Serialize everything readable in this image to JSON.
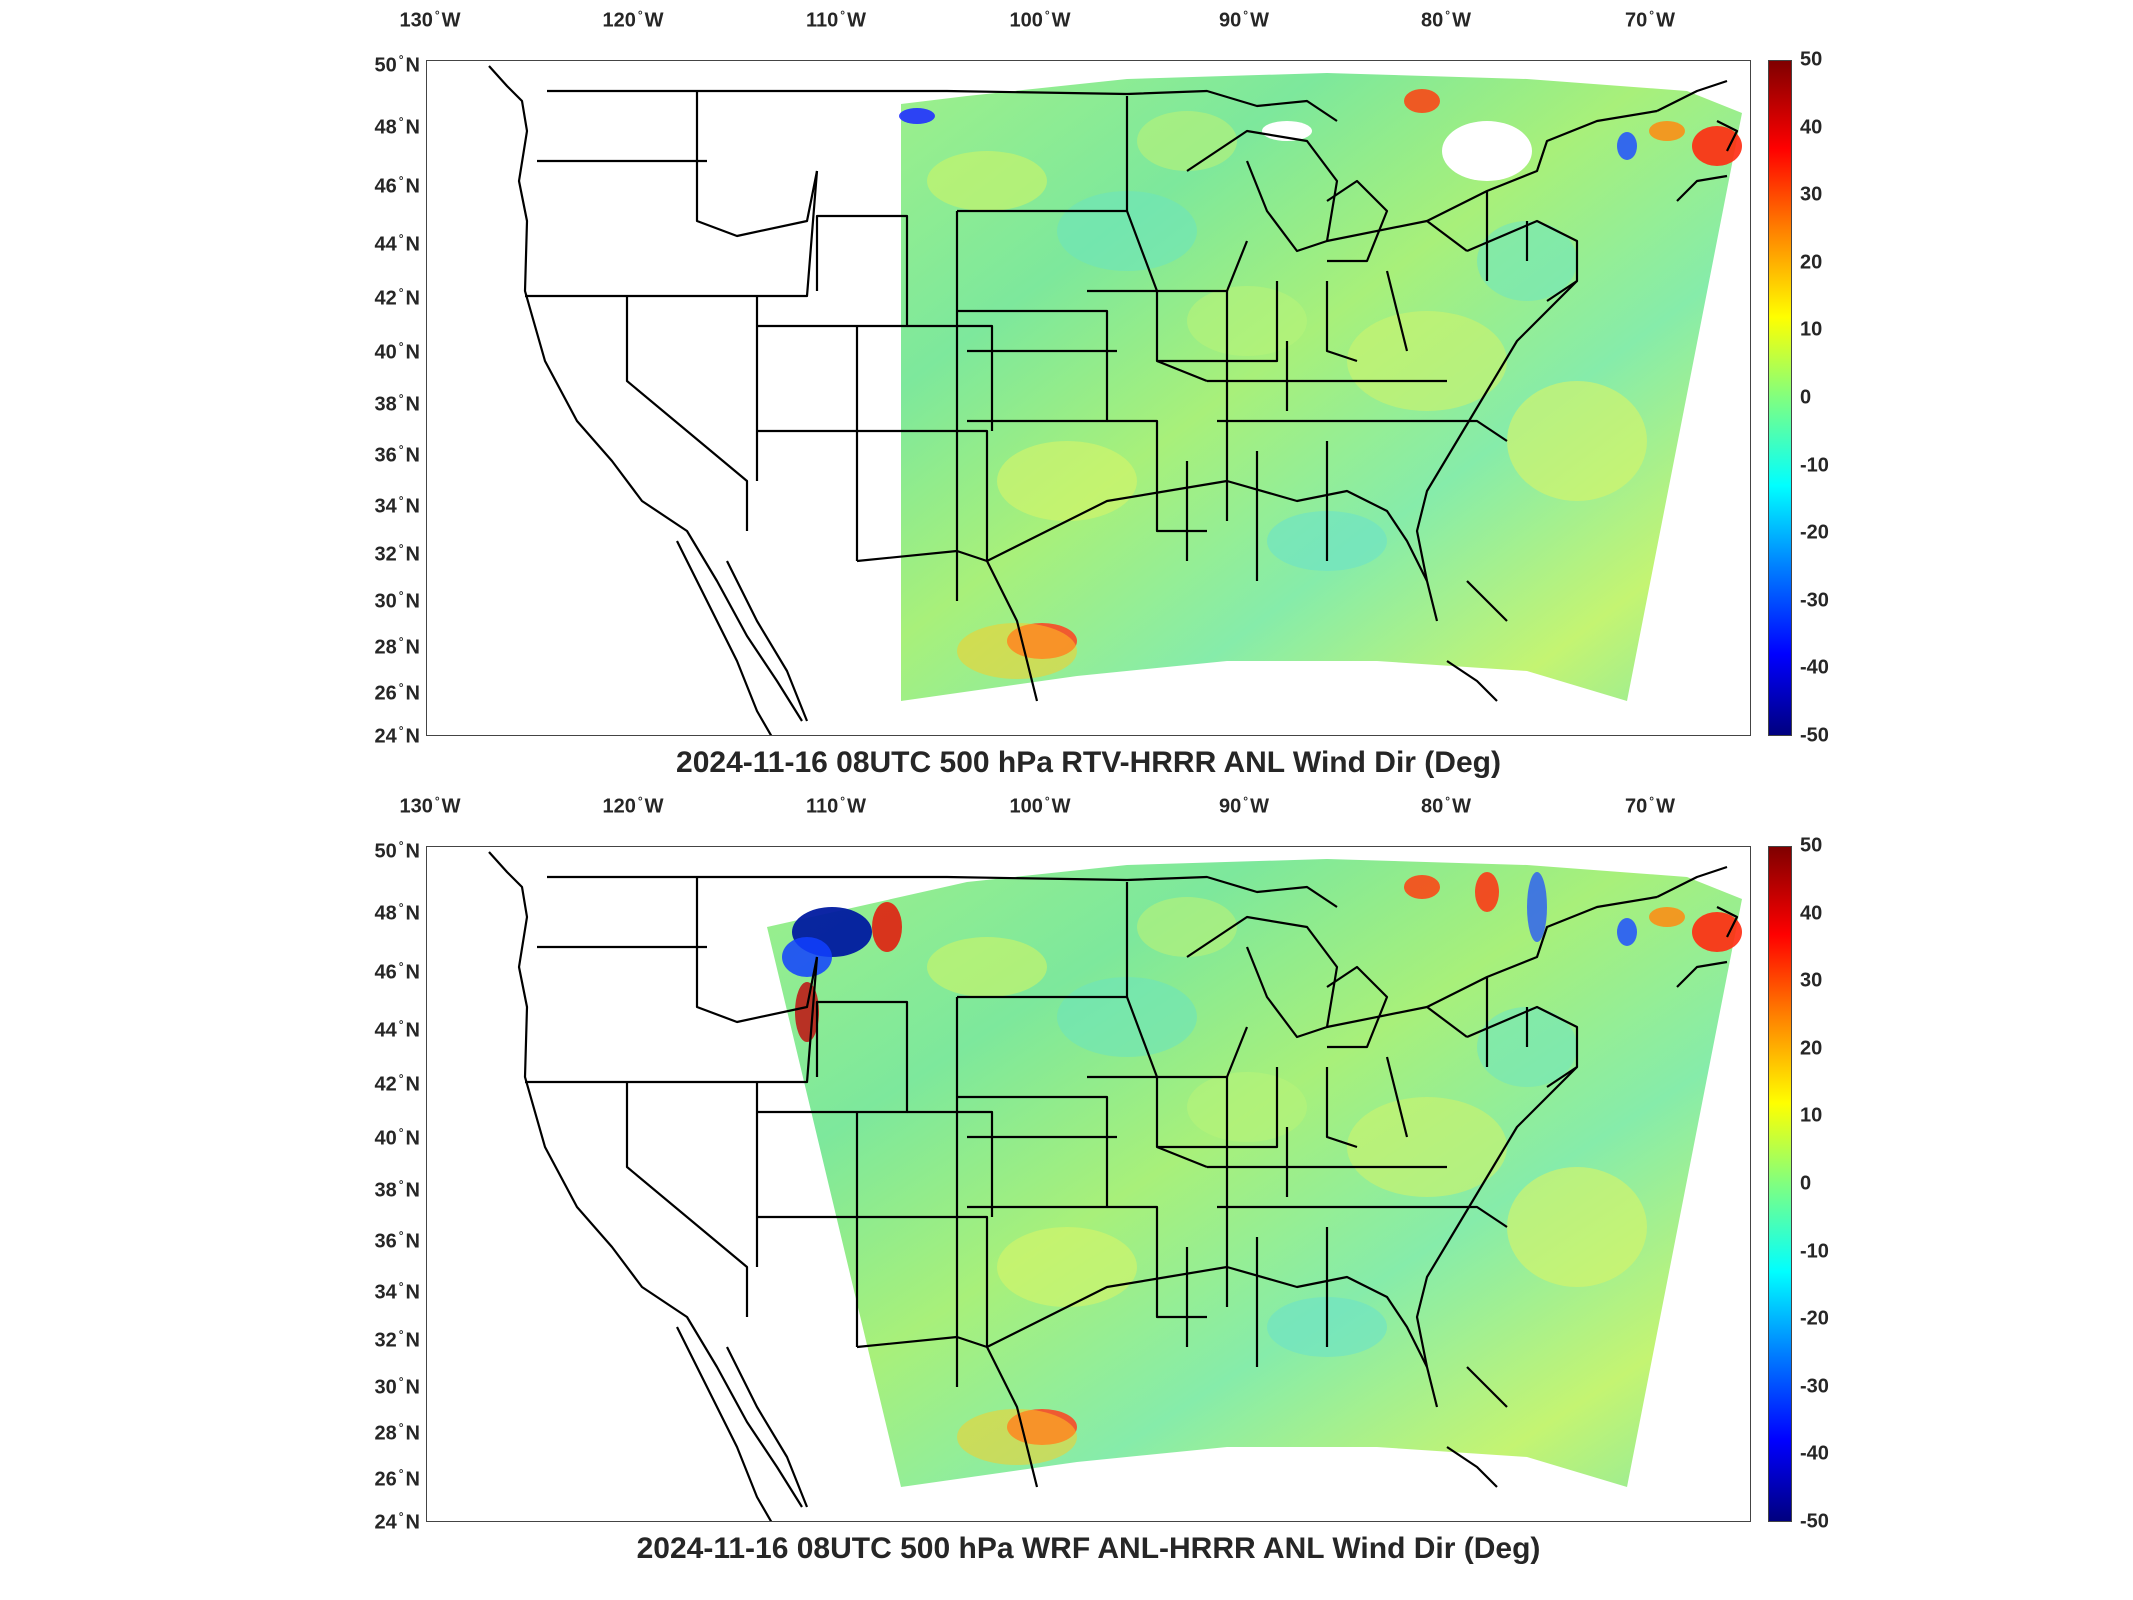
{
  "panels": [
    {
      "title": "2024-11-16 08UTC 500 hPa RTV-HRRR ANL Wind Dir (Deg)",
      "variant": "rtv"
    },
    {
      "title": "2024-11-16 08UTC 500 hPa WRF ANL-HRRR ANL Wind Dir (Deg)",
      "variant": "wrf"
    }
  ],
  "lon_labels": [
    {
      "deg": "130",
      "hemi": "W"
    },
    {
      "deg": "120",
      "hemi": "W"
    },
    {
      "deg": "110",
      "hemi": "W"
    },
    {
      "deg": "100",
      "hemi": "W"
    },
    {
      "deg": "90",
      "hemi": "W"
    },
    {
      "deg": "80",
      "hemi": "W"
    },
    {
      "deg": "70",
      "hemi": "W"
    }
  ],
  "lat_labels": [
    {
      "deg": "50",
      "hemi": "N"
    },
    {
      "deg": "48",
      "hemi": "N"
    },
    {
      "deg": "46",
      "hemi": "N"
    },
    {
      "deg": "44",
      "hemi": "N"
    },
    {
      "deg": "42",
      "hemi": "N"
    },
    {
      "deg": "40",
      "hemi": "N"
    },
    {
      "deg": "38",
      "hemi": "N"
    },
    {
      "deg": "36",
      "hemi": "N"
    },
    {
      "deg": "34",
      "hemi": "N"
    },
    {
      "deg": "32",
      "hemi": "N"
    },
    {
      "deg": "30",
      "hemi": "N"
    },
    {
      "deg": "28",
      "hemi": "N"
    },
    {
      "deg": "26",
      "hemi": "N"
    },
    {
      "deg": "24",
      "hemi": "N"
    }
  ],
  "colorbar": {
    "ticks": [
      "50",
      "40",
      "30",
      "20",
      "10",
      "0",
      "-10",
      "-20",
      "-30",
      "-40",
      "-50"
    ],
    "colors": [
      "#7f0000",
      "#ff0000",
      "#ff8000",
      "#ffff00",
      "#80ff80",
      "#00ffff",
      "#0080ff",
      "#0000ff",
      "#00007f"
    ]
  }
}
